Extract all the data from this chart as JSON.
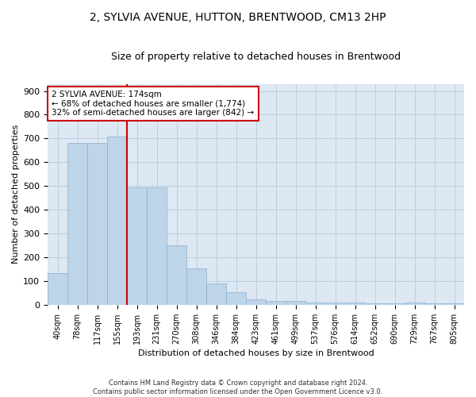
{
  "title_line1": "2, SYLVIA AVENUE, HUTTON, BRENTWOOD, CM13 2HP",
  "title_line2": "Size of property relative to detached houses in Brentwood",
  "xlabel": "Distribution of detached houses by size in Brentwood",
  "ylabel": "Number of detached properties",
  "footnote": "Contains HM Land Registry data © Crown copyright and database right 2024.\nContains public sector information licensed under the Open Government Licence v3.0.",
  "bar_labels": [
    "40sqm",
    "78sqm",
    "117sqm",
    "155sqm",
    "193sqm",
    "231sqm",
    "270sqm",
    "308sqm",
    "346sqm",
    "384sqm",
    "423sqm",
    "461sqm",
    "499sqm",
    "537sqm",
    "576sqm",
    "614sqm",
    "652sqm",
    "690sqm",
    "729sqm",
    "767sqm",
    "805sqm"
  ],
  "bar_values": [
    135,
    680,
    680,
    708,
    495,
    495,
    252,
    152,
    90,
    52,
    22,
    18,
    18,
    10,
    10,
    10,
    5,
    5,
    10,
    5,
    5
  ],
  "bar_color": "#bed4e8",
  "bar_edge_color": "#8ab0d0",
  "vline_color": "#cc0000",
  "annotation_box_color": "#cc0000",
  "ylim": [
    0,
    930
  ],
  "yticks": [
    0,
    100,
    200,
    300,
    400,
    500,
    600,
    700,
    800,
    900
  ],
  "bg_color": "#ffffff",
  "plot_bg_color": "#dde8f3",
  "grid_color": "#b8cfe0",
  "title_fontsize": 10,
  "subtitle_fontsize": 9,
  "axis_label_fontsize": 8,
  "tick_fontsize": 7,
  "annot_fontsize": 7.5
}
